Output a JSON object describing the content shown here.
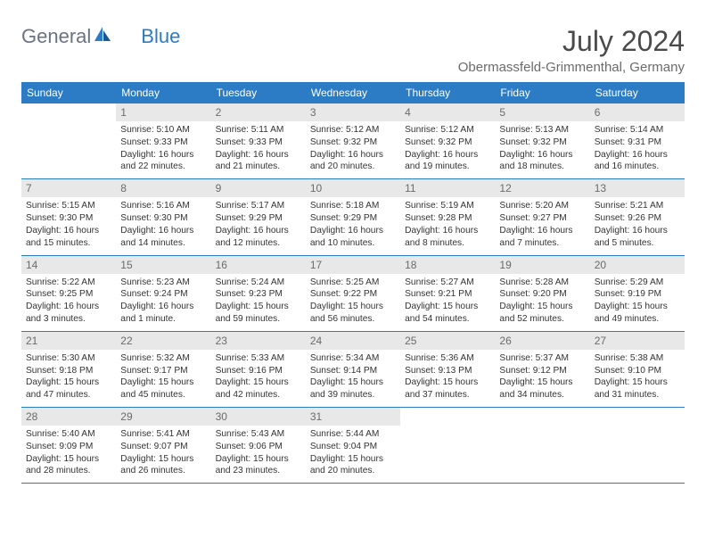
{
  "brand": {
    "name1": "General",
    "name2": "Blue"
  },
  "title": "July 2024",
  "location": "Obermassfeld-Grimmenthal, Germany",
  "weekdays": [
    "Sunday",
    "Monday",
    "Tuesday",
    "Wednesday",
    "Thursday",
    "Friday",
    "Saturday"
  ],
  "colors": {
    "header_bg": "#2b7cc4",
    "header_text": "#ffffff",
    "day_header_bg": "#e8e8e8",
    "day_header_text": "#6b6b6b",
    "text": "#333333",
    "border": "#2b7cc4"
  },
  "weeks": [
    [
      {
        "num": "",
        "sunrise": "",
        "sunset": "",
        "daylight": ""
      },
      {
        "num": "1",
        "sunrise": "Sunrise: 5:10 AM",
        "sunset": "Sunset: 9:33 PM",
        "daylight": "Daylight: 16 hours and 22 minutes."
      },
      {
        "num": "2",
        "sunrise": "Sunrise: 5:11 AM",
        "sunset": "Sunset: 9:33 PM",
        "daylight": "Daylight: 16 hours and 21 minutes."
      },
      {
        "num": "3",
        "sunrise": "Sunrise: 5:12 AM",
        "sunset": "Sunset: 9:32 PM",
        "daylight": "Daylight: 16 hours and 20 minutes."
      },
      {
        "num": "4",
        "sunrise": "Sunrise: 5:12 AM",
        "sunset": "Sunset: 9:32 PM",
        "daylight": "Daylight: 16 hours and 19 minutes."
      },
      {
        "num": "5",
        "sunrise": "Sunrise: 5:13 AM",
        "sunset": "Sunset: 9:32 PM",
        "daylight": "Daylight: 16 hours and 18 minutes."
      },
      {
        "num": "6",
        "sunrise": "Sunrise: 5:14 AM",
        "sunset": "Sunset: 9:31 PM",
        "daylight": "Daylight: 16 hours and 16 minutes."
      }
    ],
    [
      {
        "num": "7",
        "sunrise": "Sunrise: 5:15 AM",
        "sunset": "Sunset: 9:30 PM",
        "daylight": "Daylight: 16 hours and 15 minutes."
      },
      {
        "num": "8",
        "sunrise": "Sunrise: 5:16 AM",
        "sunset": "Sunset: 9:30 PM",
        "daylight": "Daylight: 16 hours and 14 minutes."
      },
      {
        "num": "9",
        "sunrise": "Sunrise: 5:17 AM",
        "sunset": "Sunset: 9:29 PM",
        "daylight": "Daylight: 16 hours and 12 minutes."
      },
      {
        "num": "10",
        "sunrise": "Sunrise: 5:18 AM",
        "sunset": "Sunset: 9:29 PM",
        "daylight": "Daylight: 16 hours and 10 minutes."
      },
      {
        "num": "11",
        "sunrise": "Sunrise: 5:19 AM",
        "sunset": "Sunset: 9:28 PM",
        "daylight": "Daylight: 16 hours and 8 minutes."
      },
      {
        "num": "12",
        "sunrise": "Sunrise: 5:20 AM",
        "sunset": "Sunset: 9:27 PM",
        "daylight": "Daylight: 16 hours and 7 minutes."
      },
      {
        "num": "13",
        "sunrise": "Sunrise: 5:21 AM",
        "sunset": "Sunset: 9:26 PM",
        "daylight": "Daylight: 16 hours and 5 minutes."
      }
    ],
    [
      {
        "num": "14",
        "sunrise": "Sunrise: 5:22 AM",
        "sunset": "Sunset: 9:25 PM",
        "daylight": "Daylight: 16 hours and 3 minutes."
      },
      {
        "num": "15",
        "sunrise": "Sunrise: 5:23 AM",
        "sunset": "Sunset: 9:24 PM",
        "daylight": "Daylight: 16 hours and 1 minute."
      },
      {
        "num": "16",
        "sunrise": "Sunrise: 5:24 AM",
        "sunset": "Sunset: 9:23 PM",
        "daylight": "Daylight: 15 hours and 59 minutes."
      },
      {
        "num": "17",
        "sunrise": "Sunrise: 5:25 AM",
        "sunset": "Sunset: 9:22 PM",
        "daylight": "Daylight: 15 hours and 56 minutes."
      },
      {
        "num": "18",
        "sunrise": "Sunrise: 5:27 AM",
        "sunset": "Sunset: 9:21 PM",
        "daylight": "Daylight: 15 hours and 54 minutes."
      },
      {
        "num": "19",
        "sunrise": "Sunrise: 5:28 AM",
        "sunset": "Sunset: 9:20 PM",
        "daylight": "Daylight: 15 hours and 52 minutes."
      },
      {
        "num": "20",
        "sunrise": "Sunrise: 5:29 AM",
        "sunset": "Sunset: 9:19 PM",
        "daylight": "Daylight: 15 hours and 49 minutes."
      }
    ],
    [
      {
        "num": "21",
        "sunrise": "Sunrise: 5:30 AM",
        "sunset": "Sunset: 9:18 PM",
        "daylight": "Daylight: 15 hours and 47 minutes."
      },
      {
        "num": "22",
        "sunrise": "Sunrise: 5:32 AM",
        "sunset": "Sunset: 9:17 PM",
        "daylight": "Daylight: 15 hours and 45 minutes."
      },
      {
        "num": "23",
        "sunrise": "Sunrise: 5:33 AM",
        "sunset": "Sunset: 9:16 PM",
        "daylight": "Daylight: 15 hours and 42 minutes."
      },
      {
        "num": "24",
        "sunrise": "Sunrise: 5:34 AM",
        "sunset": "Sunset: 9:14 PM",
        "daylight": "Daylight: 15 hours and 39 minutes."
      },
      {
        "num": "25",
        "sunrise": "Sunrise: 5:36 AM",
        "sunset": "Sunset: 9:13 PM",
        "daylight": "Daylight: 15 hours and 37 minutes."
      },
      {
        "num": "26",
        "sunrise": "Sunrise: 5:37 AM",
        "sunset": "Sunset: 9:12 PM",
        "daylight": "Daylight: 15 hours and 34 minutes."
      },
      {
        "num": "27",
        "sunrise": "Sunrise: 5:38 AM",
        "sunset": "Sunset: 9:10 PM",
        "daylight": "Daylight: 15 hours and 31 minutes."
      }
    ],
    [
      {
        "num": "28",
        "sunrise": "Sunrise: 5:40 AM",
        "sunset": "Sunset: 9:09 PM",
        "daylight": "Daylight: 15 hours and 28 minutes."
      },
      {
        "num": "29",
        "sunrise": "Sunrise: 5:41 AM",
        "sunset": "Sunset: 9:07 PM",
        "daylight": "Daylight: 15 hours and 26 minutes."
      },
      {
        "num": "30",
        "sunrise": "Sunrise: 5:43 AM",
        "sunset": "Sunset: 9:06 PM",
        "daylight": "Daylight: 15 hours and 23 minutes."
      },
      {
        "num": "31",
        "sunrise": "Sunrise: 5:44 AM",
        "sunset": "Sunset: 9:04 PM",
        "daylight": "Daylight: 15 hours and 20 minutes."
      },
      {
        "num": "",
        "sunrise": "",
        "sunset": "",
        "daylight": ""
      },
      {
        "num": "",
        "sunrise": "",
        "sunset": "",
        "daylight": ""
      },
      {
        "num": "",
        "sunrise": "",
        "sunset": "",
        "daylight": ""
      }
    ]
  ]
}
